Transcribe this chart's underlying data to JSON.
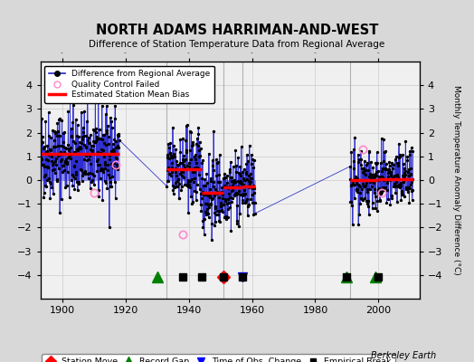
{
  "title": "NORTH ADAMS HARRIMAN-AND-WEST",
  "subtitle": "Difference of Station Temperature Data from Regional Average",
  "ylabel_right": "Monthly Temperature Anomaly Difference (°C)",
  "credit": "Berkeley Earth",
  "xlim": [
    1893,
    2013
  ],
  "ylim": [
    -5,
    5
  ],
  "yticks": [
    -4,
    -3,
    -2,
    -1,
    0,
    1,
    2,
    3,
    4
  ],
  "xticks": [
    1900,
    1920,
    1940,
    1960,
    1980,
    2000
  ],
  "bg_color": "#d8d8d8",
  "plot_bg_color": "#f0f0f0",
  "seed": 42,
  "data_segments": [
    {
      "start_year": 1893,
      "end_year": 1918,
      "sub_segments": [
        {
          "start": 1893,
          "end": 1918,
          "bias": 1.1,
          "spread": 0.95
        }
      ]
    },
    {
      "start_year": 1933,
      "end_year": 1961,
      "sub_segments": [
        {
          "start": 1933,
          "end": 1944,
          "bias": 0.45,
          "spread": 0.85
        },
        {
          "start": 1944,
          "end": 1951,
          "bias": -0.55,
          "spread": 0.85
        },
        {
          "start": 1951,
          "end": 1957,
          "bias": -0.3,
          "spread": 0.75
        },
        {
          "start": 1957,
          "end": 1961,
          "bias": -0.25,
          "spread": 0.7
        }
      ]
    },
    {
      "start_year": 1991,
      "end_year": 2011,
      "sub_segments": [
        {
          "start": 1991,
          "end": 2000,
          "bias": 0.0,
          "spread": 0.7
        },
        {
          "start": 2000,
          "end": 2011,
          "bias": 0.05,
          "spread": 0.65
        }
      ]
    }
  ],
  "tall_lines": [
    {
      "x": 1933,
      "ymin": -5,
      "ymax": 5
    },
    {
      "x": 1951,
      "ymin": -5,
      "ymax": 5
    },
    {
      "x": 1957,
      "ymin": -5,
      "ymax": 5
    },
    {
      "x": 1991,
      "ymin": -5,
      "ymax": 5
    }
  ],
  "qc_failed_positions": [
    {
      "year": 1910,
      "val": -0.55
    },
    {
      "year": 1917,
      "val": 0.65
    },
    {
      "year": 1938,
      "val": -2.3
    },
    {
      "year": 1995,
      "val": 1.3
    },
    {
      "year": 2001,
      "val": -0.55
    }
  ],
  "station_moves": [
    1951
  ],
  "record_gaps": [
    1930,
    1990,
    1999
  ],
  "obs_changes": [
    1957
  ],
  "empirical_breaks": [
    1938,
    1944,
    1951,
    1957,
    1990,
    2000
  ],
  "marker_y": -4.1,
  "legend_items": [
    "Difference from Regional Average",
    "Quality Control Failed",
    "Estimated Station Mean Bias"
  ],
  "legend2_items": [
    "Station Move",
    "Record Gap",
    "Time of Obs. Change",
    "Empirical Break"
  ]
}
